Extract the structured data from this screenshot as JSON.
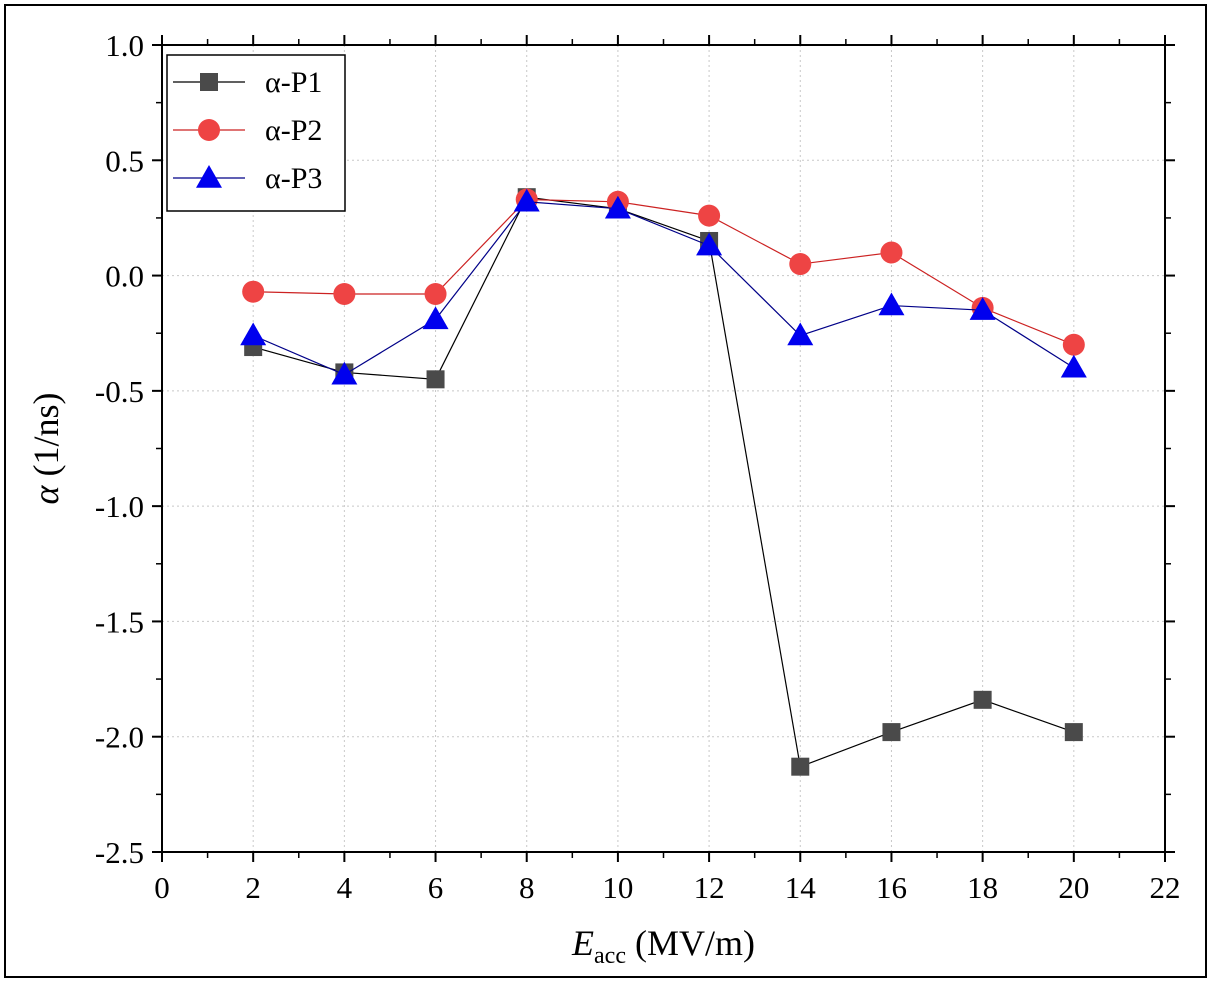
{
  "chart_data": {
    "type": "line",
    "xlabel": {
      "main": "E",
      "sub": "acc",
      "rest": " (MV/m)"
    },
    "ylabel": {
      "main": "α",
      "rest": " (1/ns)"
    },
    "xlim": [
      0,
      22
    ],
    "ylim": [
      -2.5,
      1.0
    ],
    "xticks": [
      0,
      2,
      4,
      6,
      8,
      10,
      12,
      14,
      16,
      18,
      20,
      22
    ],
    "yticks": [
      1.0,
      0.5,
      0.0,
      -0.5,
      -1.0,
      -1.5,
      -2.0,
      -2.5
    ],
    "ytick_labels": [
      "1.0",
      "0.5",
      "0.0",
      "-0.5",
      "-1.0",
      "-1.5",
      "-2.0",
      "-2.5"
    ],
    "grid": true,
    "legend_position": "top-left",
    "x": [
      2,
      4,
      6,
      8,
      10,
      12,
      14,
      16,
      18,
      20
    ],
    "series": [
      {
        "name": "α-P1",
        "marker": "square",
        "color": "#4a4a4a",
        "line_color": "#000000",
        "values": [
          -0.31,
          -0.42,
          -0.45,
          0.34,
          0.29,
          0.15,
          -2.13,
          -1.98,
          -1.84,
          -1.98
        ]
      },
      {
        "name": "α-P2",
        "marker": "circle",
        "color": "#ee4444",
        "line_color": "#cc2222",
        "values": [
          -0.07,
          -0.08,
          -0.08,
          0.33,
          0.32,
          0.26,
          0.05,
          0.1,
          -0.14,
          -0.3
        ]
      },
      {
        "name": "α-P3",
        "marker": "triangle",
        "color": "#0000ee",
        "line_color": "#000088",
        "values": [
          -0.26,
          -0.43,
          -0.19,
          0.32,
          0.29,
          0.13,
          -0.26,
          -0.13,
          -0.15,
          -0.4
        ]
      }
    ]
  }
}
